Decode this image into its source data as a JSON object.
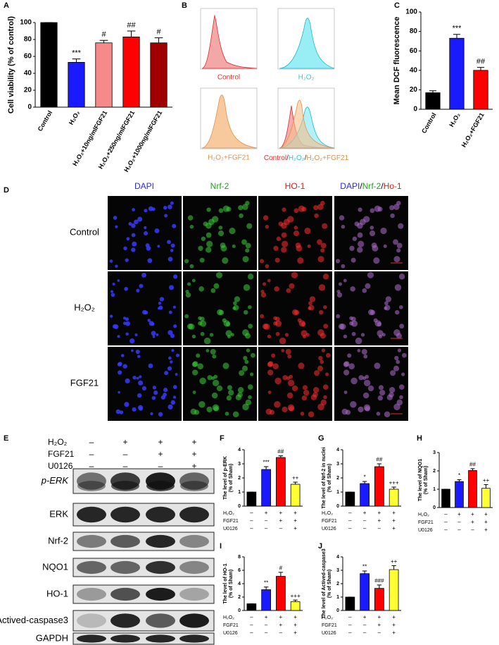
{
  "chart_data": [
    {
      "type": "bar",
      "panel": "A",
      "ylabel": [
        "Cell viability (% of control)"
      ],
      "categories": [
        "Control",
        "H₂O₂",
        "H₂O₂+10ng/mlFGF21",
        "H₂O₂+250ng/mlFGF21",
        "H₂O₂+1000ng/mlFGF21"
      ],
      "values": [
        100,
        53,
        76,
        83,
        76
      ],
      "errors": [
        0,
        4,
        3,
        7,
        6
      ],
      "annotations": [
        null,
        "***",
        "#",
        "##",
        "#"
      ],
      "colors": [
        "#000000",
        "#1a1aff",
        "#f48a8a",
        "#ff0000",
        "#a00000"
      ],
      "ylim": [
        0,
        100
      ],
      "yticks": [
        0,
        20,
        40,
        60,
        80,
        100
      ]
    },
    {
      "type": "bar",
      "panel": "C",
      "ylabel": [
        "Mean DCF fluorescence"
      ],
      "categories": [
        "Control",
        "H₂O₂",
        "H₂O₂+FGF21"
      ],
      "values": [
        17,
        73,
        40
      ],
      "errors": [
        2,
        4,
        3
      ],
      "annotations": [
        null,
        "***",
        "##"
      ],
      "colors": [
        "#000000",
        "#1a1aff",
        "#ff0000"
      ],
      "ylim": [
        0,
        100
      ],
      "yticks": [
        0,
        20,
        40,
        60,
        80,
        100
      ]
    },
    {
      "type": "bar",
      "panel": "F",
      "ylabel": [
        "The level of p-ERK",
        "(% of Sham)"
      ],
      "values": [
        1,
        2.6,
        3.45,
        1.55
      ],
      "errors": [
        0,
        0.2,
        0.12,
        0.15
      ],
      "annotations": [
        null,
        "***",
        "##",
        "++"
      ],
      "colors": [
        "#000000",
        "#1a1aff",
        "#ff0000",
        "#ffff33"
      ],
      "ylim": [
        0,
        4
      ],
      "yticks": [
        0,
        1,
        2,
        3,
        4
      ],
      "treatments": [
        {
          "label": "H₂O₂",
          "signs": [
            "–",
            "+",
            "+",
            "+"
          ]
        },
        {
          "label": "FGF21",
          "signs": [
            "–",
            "–",
            "+",
            "+"
          ]
        },
        {
          "label": "U0126",
          "signs": [
            "–",
            "–",
            "–",
            "+"
          ]
        }
      ]
    },
    {
      "type": "bar",
      "panel": "G",
      "ylabel": [
        "The level of Nrf-2 in nuclei",
        "(% of Sham)"
      ],
      "values": [
        1,
        1.6,
        2.8,
        1.2
      ],
      "errors": [
        0,
        0.15,
        0.2,
        0.15
      ],
      "annotations": [
        null,
        "*",
        "##",
        "+++"
      ],
      "colors": [
        "#000000",
        "#1a1aff",
        "#ff0000",
        "#ffff33"
      ],
      "ylim": [
        0,
        4
      ],
      "yticks": [
        0,
        1,
        2,
        3,
        4
      ],
      "treatments": [
        {
          "label": "H₂O₂",
          "signs": [
            "–",
            "+",
            "+",
            "+"
          ]
        },
        {
          "label": "FGF21",
          "signs": [
            "–",
            "–",
            "+",
            "+"
          ]
        },
        {
          "label": "U0126",
          "signs": [
            "–",
            "–",
            "–",
            "+"
          ]
        }
      ]
    },
    {
      "type": "bar",
      "panel": "H",
      "ylabel": [
        "The level of NQO1",
        "(% of Sham)"
      ],
      "values": [
        1,
        1.42,
        2.02,
        1.05
      ],
      "errors": [
        0,
        0.1,
        0.1,
        0.2
      ],
      "annotations": [
        null,
        "*",
        "##",
        "++"
      ],
      "colors": [
        "#000000",
        "#1a1aff",
        "#ff0000",
        "#ffff33"
      ],
      "ylim": [
        0,
        3
      ],
      "yticks": [
        0,
        1,
        2,
        3
      ],
      "treatments": [
        {
          "label": "H₂O₂",
          "signs": [
            "–",
            "+",
            "+",
            "+"
          ]
        },
        {
          "label": "FGF21",
          "signs": [
            "–",
            "–",
            "+",
            "+"
          ]
        },
        {
          "label": "U0126",
          "signs": [
            "–",
            "–",
            "–",
            "+"
          ]
        }
      ]
    },
    {
      "type": "bar",
      "panel": "I",
      "ylabel": [
        "The level of HO-1",
        "(% of Sham)"
      ],
      "values": [
        1,
        3.1,
        5.1,
        1.3
      ],
      "errors": [
        0,
        0.4,
        0.6,
        0.25
      ],
      "annotations": [
        null,
        "**",
        "#",
        "+++"
      ],
      "colors": [
        "#000000",
        "#1a1aff",
        "#ff0000",
        "#ffff33"
      ],
      "ylim": [
        0,
        8
      ],
      "yticks": [
        0,
        2,
        4,
        6,
        8
      ],
      "treatments": [
        {
          "label": "H₂O₂",
          "signs": [
            "–",
            "+",
            "+",
            "+"
          ]
        },
        {
          "label": "FGF21",
          "signs": [
            "–",
            "–",
            "+",
            "+"
          ]
        },
        {
          "label": "U0126",
          "signs": [
            "–",
            "–",
            "–",
            "+"
          ]
        }
      ]
    },
    {
      "type": "bar",
      "panel": "J",
      "ylabel": [
        "The level of Actived-caspase3",
        "(% of Sham)"
      ],
      "values": [
        1,
        2.75,
        1.65,
        3.05
      ],
      "errors": [
        0,
        0.2,
        0.25,
        0.3
      ],
      "annotations": [
        null,
        "**",
        "###",
        "++"
      ],
      "colors": [
        "#000000",
        "#1a1aff",
        "#ff0000",
        "#ffff33"
      ],
      "ylim": [
        0,
        4
      ],
      "yticks": [
        0,
        1,
        2,
        3,
        4
      ],
      "treatments": [
        {
          "label": "H₂O₂",
          "signs": [
            "–",
            "+",
            "+",
            "+"
          ]
        },
        {
          "label": "FGF21",
          "signs": [
            "–",
            "–",
            "+",
            "+"
          ]
        },
        {
          "label": "U0126",
          "signs": [
            "–",
            "–",
            "–",
            "+"
          ]
        }
      ]
    }
  ],
  "flow": {
    "panel": "B",
    "labels": [
      "Control",
      "H₂O₂",
      "H₂O₂+FGF21"
    ],
    "overlay_label": [
      "Control",
      "/",
      "H₂O₂",
      "/",
      "H₂O₂+FGF21"
    ]
  },
  "micrographs": {
    "panel": "D",
    "columns": [
      "DAPI",
      "Nrf-2",
      "HO-1"
    ],
    "merge_label": [
      "DAPI",
      "/",
      "Nrf-2",
      "/",
      "Ho-1"
    ],
    "rows": [
      "Control",
      "H₂O₂",
      "FGF21"
    ]
  },
  "western": {
    "panel": "E",
    "treatments": [
      {
        "label": "H₂O₂",
        "signs": [
          "–",
          "+",
          "+",
          "+"
        ]
      },
      {
        "label": "FGF21",
        "signs": [
          "–",
          "–",
          "+",
          "+"
        ]
      },
      {
        "label": "U0126",
        "signs": [
          "–",
          "–",
          "–",
          "+"
        ]
      }
    ],
    "proteins": [
      "p-ERK",
      "ERK",
      "Nrf-2",
      "NQO1",
      "HO-1",
      "Actived-caspase3",
      "GAPDH"
    ]
  }
}
